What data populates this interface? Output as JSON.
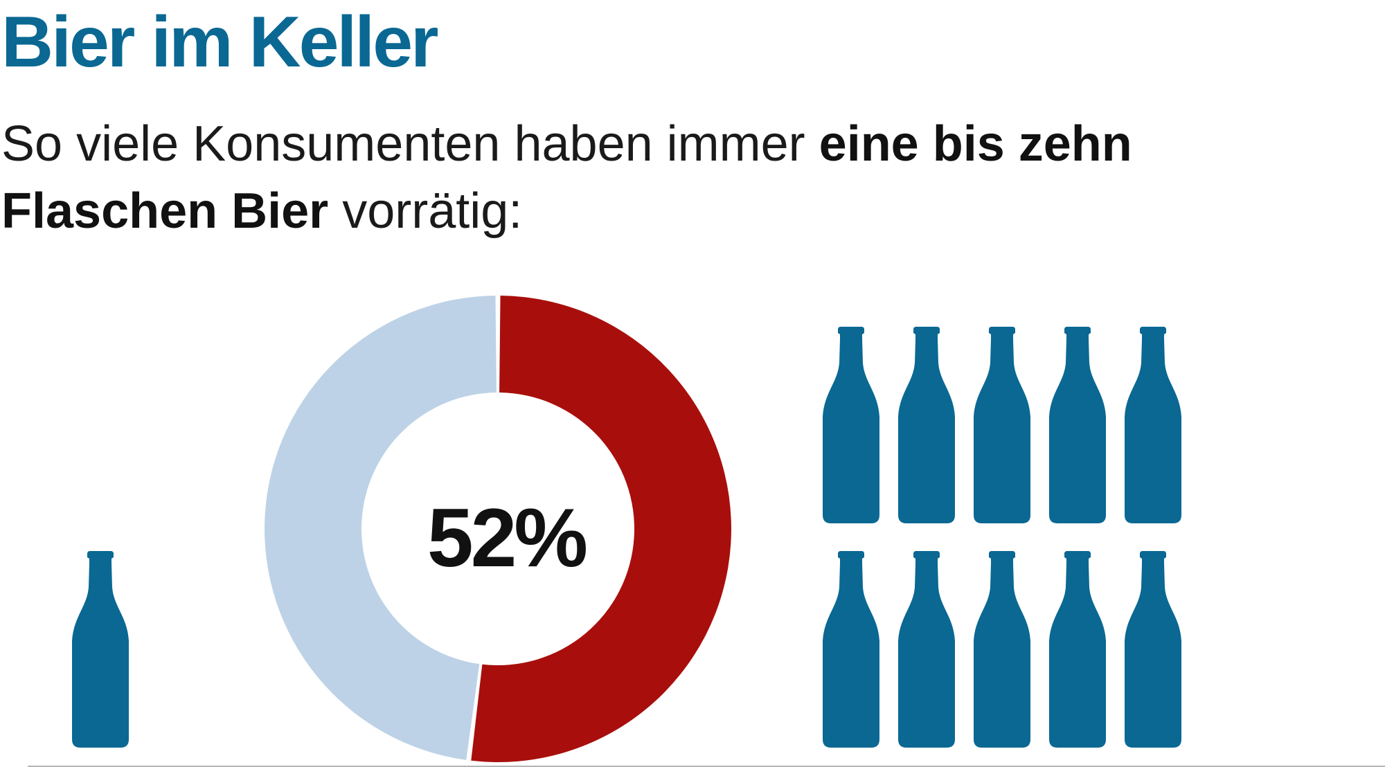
{
  "title": "Bier im Keller",
  "subtitle": {
    "part1": "So viele Konsumenten haben immer ",
    "bold": "eine bis zehn Flaschen Bier",
    "part2": " vorrätig:"
  },
  "chart_data": {
    "type": "pie",
    "variant": "donut",
    "center_label": "52%",
    "slices": [
      {
        "value": 52,
        "color": "#a80f0c"
      },
      {
        "value": 48,
        "color": "#bdd2e6"
      }
    ],
    "pictogram": {
      "left_group_count": 1,
      "right_group_count": 10,
      "icon": "beer-bottle-icon",
      "color": "#0a6893"
    }
  },
  "colors": {
    "accent": "#0a6893",
    "highlight": "#a80f0c",
    "rest": "#bdd2e6"
  }
}
